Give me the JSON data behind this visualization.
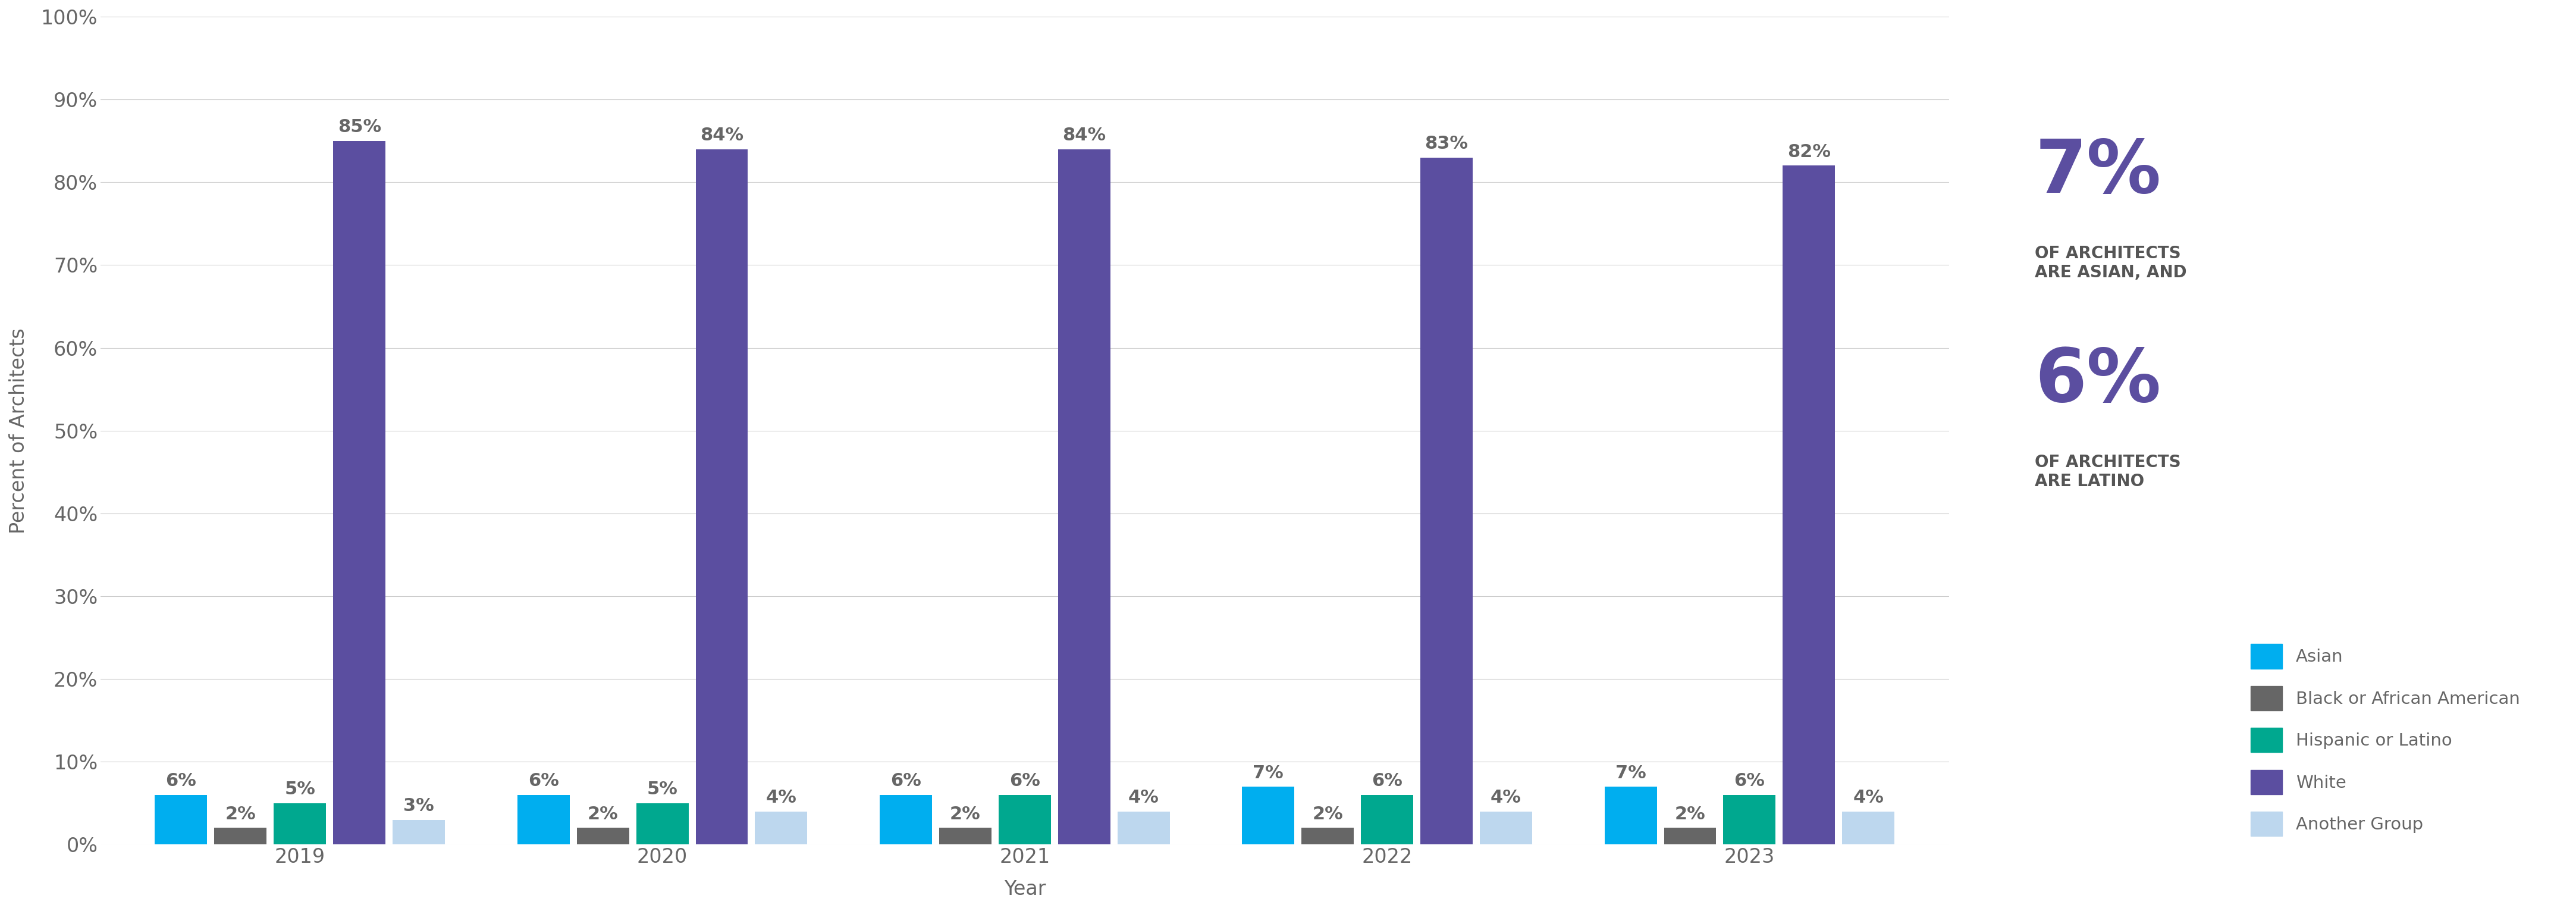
{
  "years": [
    "2019",
    "2020",
    "2021",
    "2022",
    "2023"
  ],
  "categories": [
    "Asian",
    "Black or African American",
    "Hispanic or Latino",
    "White",
    "Another Group"
  ],
  "colors": [
    "#00AEEF",
    "#666666",
    "#00A88F",
    "#5B4EA0",
    "#BDD7EE"
  ],
  "values": {
    "2019": [
      6,
      2,
      5,
      85,
      3
    ],
    "2020": [
      6,
      2,
      5,
      84,
      4
    ],
    "2021": [
      6,
      2,
      6,
      84,
      4
    ],
    "2022": [
      7,
      2,
      6,
      83,
      4
    ],
    "2023": [
      7,
      2,
      6,
      82,
      4
    ]
  },
  "ylabel": "Percent of Architects",
  "xlabel": "Year",
  "ylim": [
    0,
    100
  ],
  "yticks": [
    0,
    10,
    20,
    30,
    40,
    50,
    60,
    70,
    80,
    90,
    100
  ],
  "ytick_labels": [
    "0%",
    "10%",
    "20%",
    "30%",
    "40%",
    "50%",
    "60%",
    "70%",
    "80%",
    "90%",
    "100%"
  ],
  "annotation_7pct": "7%",
  "annotation_7pct_sub": "OF ARCHITECTS\nARE ASIAN, AND",
  "annotation_6pct": "6%",
  "annotation_6pct_sub": "OF ARCHITECTS\nARE LATINO",
  "annotation_color": "#5B4EA0",
  "annotation_sub_color": "#555555",
  "background_color": "#FFFFFF",
  "bar_label_color": "#666666",
  "bar_label_fontsize": 22,
  "legend_labels": [
    "Asian",
    "Black or African American",
    "Hispanic or Latino",
    "White",
    "Another Group"
  ],
  "figure_width": 43.31,
  "figure_height": 15.26
}
